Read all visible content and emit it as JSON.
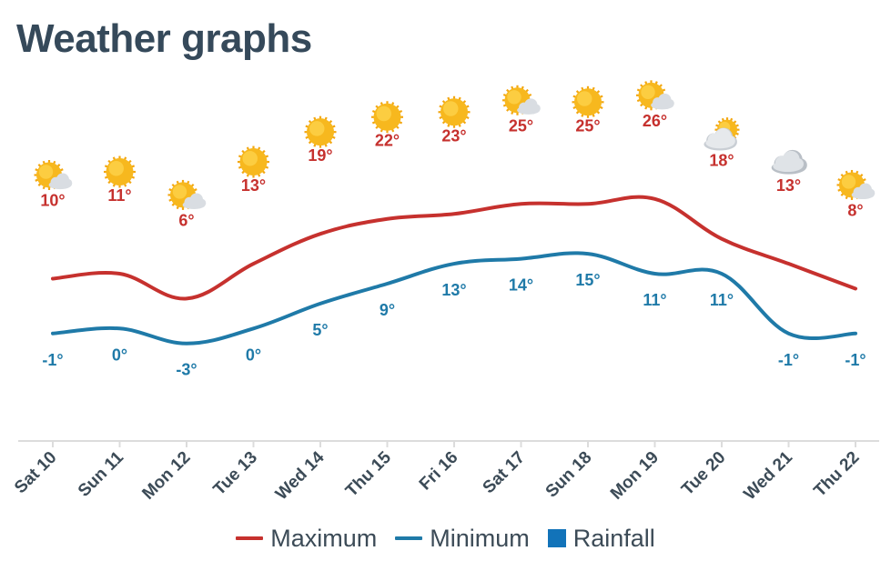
{
  "header": {
    "title": "Weather graphs"
  },
  "colors": {
    "max": "#c6312e",
    "min": "#1f7aa8",
    "rain": "#1273b9",
    "axis": "#dcdcdc",
    "text": "#3c4b57"
  },
  "legend": {
    "max_label": "Maximum",
    "min_label": "Minimum",
    "rain_label": "Rainfall"
  },
  "chart_data": {
    "type": "line",
    "categories": [
      "Sat 10",
      "Sun 11",
      "Mon 12",
      "Tue 13",
      "Wed 14",
      "Thu 15",
      "Fri 16",
      "Sat 17",
      "Sun 18",
      "Mon 19",
      "Tue 20",
      "Wed 21",
      "Thu 22"
    ],
    "icons": [
      "partly-cloudy-icon",
      "sun-icon",
      "partly-cloudy-icon",
      "sun-icon",
      "sun-icon",
      "sun-icon",
      "sun-icon",
      "partly-cloudy-icon",
      "sun-icon",
      "partly-cloudy-icon",
      "sun-cloud-icon",
      "cloud-icon",
      "partly-cloudy-icon"
    ],
    "series": [
      {
        "name": "Maximum",
        "values": [
          10,
          11,
          6,
          13,
          19,
          22,
          23,
          25,
          25,
          26,
          18,
          13,
          8
        ],
        "labels": [
          "10°",
          "11°",
          "6°",
          "13°",
          "19°",
          "22°",
          "23°",
          "25°",
          "25°",
          "26°",
          "18°",
          "13°",
          "8°"
        ]
      },
      {
        "name": "Minimum",
        "values": [
          -1,
          0,
          -3,
          0,
          5,
          9,
          13,
          14,
          15,
          11,
          11,
          -1,
          -1
        ],
        "labels": [
          "-1°",
          "0°",
          "-3°",
          "0°",
          "5°",
          "9°",
          "13°",
          "14°",
          "15°",
          "11°",
          "11°",
          "-1°",
          "-1°"
        ]
      }
    ],
    "xlabel": "",
    "ylabel": "",
    "grid": false,
    "legend_position": "bottom-center"
  }
}
